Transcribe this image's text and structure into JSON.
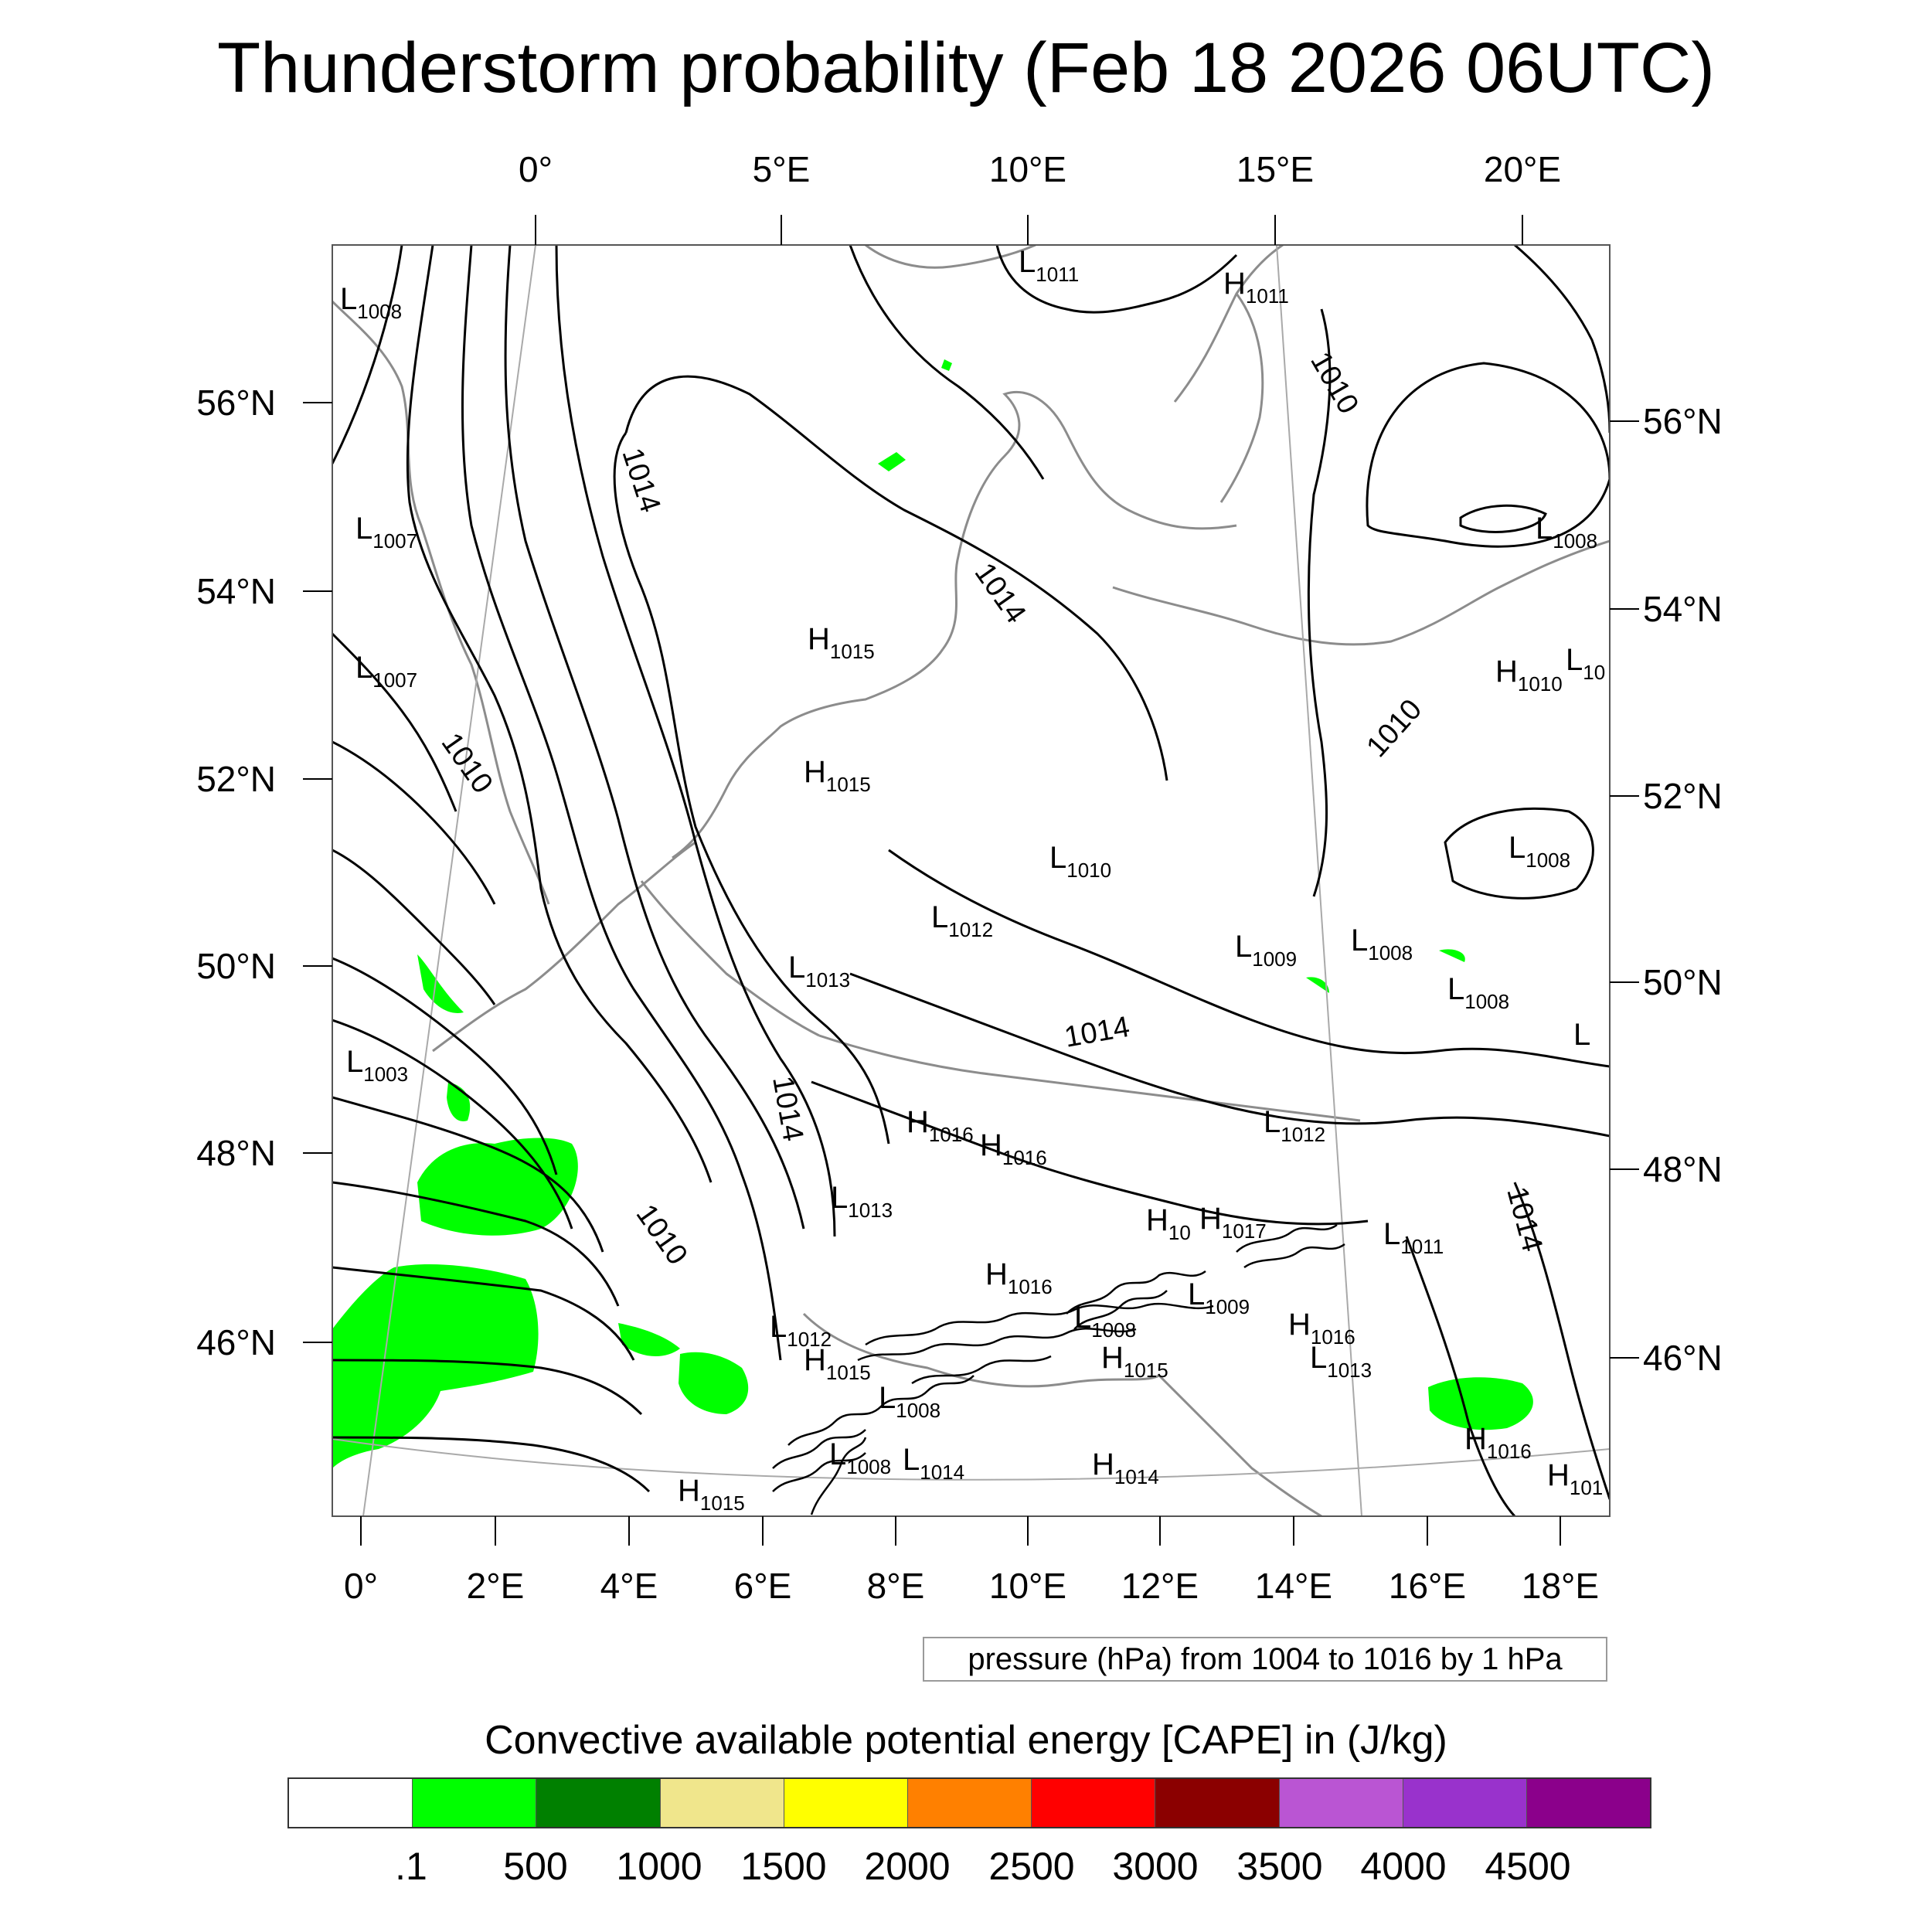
{
  "title": "Thunderstorm probability (Feb 18 2026 06UTC)",
  "map": {
    "top_lon_labels": [
      "0°",
      "5°E",
      "10°E",
      "15°E",
      "20°E"
    ],
    "bottom_lon_labels": [
      "0°",
      "2°E",
      "4°E",
      "6°E",
      "8°E",
      "10°E",
      "12°E",
      "14°E",
      "16°E",
      "18°E"
    ],
    "left_lat_labels": [
      "56°N",
      "54°N",
      "52°N",
      "50°N",
      "48°N",
      "46°N"
    ],
    "right_lat_labels": [
      "56°N",
      "54°N",
      "52°N",
      "50°N",
      "48°N",
      "46°N"
    ],
    "pressure_centers": [
      {
        "type": "L",
        "value": "1008"
      },
      {
        "type": "L",
        "value": "1011"
      },
      {
        "type": "H",
        "value": "1011"
      },
      {
        "type": "L",
        "value": "1007"
      },
      {
        "type": "L",
        "value": "1007"
      },
      {
        "type": "L",
        "value": "1008"
      },
      {
        "type": "H",
        "value": "1015"
      },
      {
        "type": "H",
        "value": "1015"
      },
      {
        "type": "H",
        "value": "1010"
      },
      {
        "type": "L",
        "value": "10"
      },
      {
        "type": "L",
        "value": "1008"
      },
      {
        "type": "L",
        "value": "1010"
      },
      {
        "type": "L",
        "value": "1012"
      },
      {
        "type": "L",
        "value": "1013"
      },
      {
        "type": "L",
        "value": "1009"
      },
      {
        "type": "L",
        "value": "1008"
      },
      {
        "type": "L",
        "value": "1008"
      },
      {
        "type": "L",
        "value": ""
      },
      {
        "type": "L",
        "value": "1003"
      },
      {
        "type": "H",
        "value": "1016"
      },
      {
        "type": "H",
        "value": "1016"
      },
      {
        "type": "L",
        "value": "1012"
      },
      {
        "type": "L",
        "value": "1013"
      },
      {
        "type": "H",
        "value": "10"
      },
      {
        "type": "H",
        "value": "1017"
      },
      {
        "type": "L",
        "value": "1011"
      },
      {
        "type": "H",
        "value": "1016"
      },
      {
        "type": "L",
        "value": "1009"
      },
      {
        "type": "L",
        "value": "1012"
      },
      {
        "type": "L",
        "value": "1008"
      },
      {
        "type": "H",
        "value": "1016"
      },
      {
        "type": "H",
        "value": "1015"
      },
      {
        "type": "L",
        "value": "1013"
      },
      {
        "type": "H",
        "value": "1015"
      },
      {
        "type": "L",
        "value": "1008"
      },
      {
        "type": "L",
        "value": "1008"
      },
      {
        "type": "L",
        "value": "1014"
      },
      {
        "type": "H",
        "value": "1014"
      },
      {
        "type": "H",
        "value": "1015"
      },
      {
        "type": "H",
        "value": "1016"
      },
      {
        "type": "H",
        "value": "101"
      }
    ],
    "isobar_labels": [
      "1014",
      "1010",
      "1014",
      "1010",
      "1010",
      "1014",
      "1014",
      "1010",
      "1014"
    ],
    "colors": {
      "isobar": "#000000",
      "coastline": "#8c8c8c",
      "cape_fill": "#00ff00",
      "frame": "#555555"
    }
  },
  "pressure_note": "pressure (hPa) from 1004 to 1016 by 1 hPa",
  "colorbar": {
    "title": "Convective available potential energy [CAPE] in (J/kg)",
    "colors": [
      "#ffffff",
      "#00ff00",
      "#008000",
      "#f0e68c",
      "#ffff00",
      "#ff8000",
      "#ff0000",
      "#8b0000",
      "#ba55d3",
      "#9932cc",
      "#8b008b"
    ],
    "labels": [
      ".1",
      "500",
      "1000",
      "1500",
      "2000",
      "2500",
      "3000",
      "3500",
      "4000",
      "4500"
    ]
  }
}
